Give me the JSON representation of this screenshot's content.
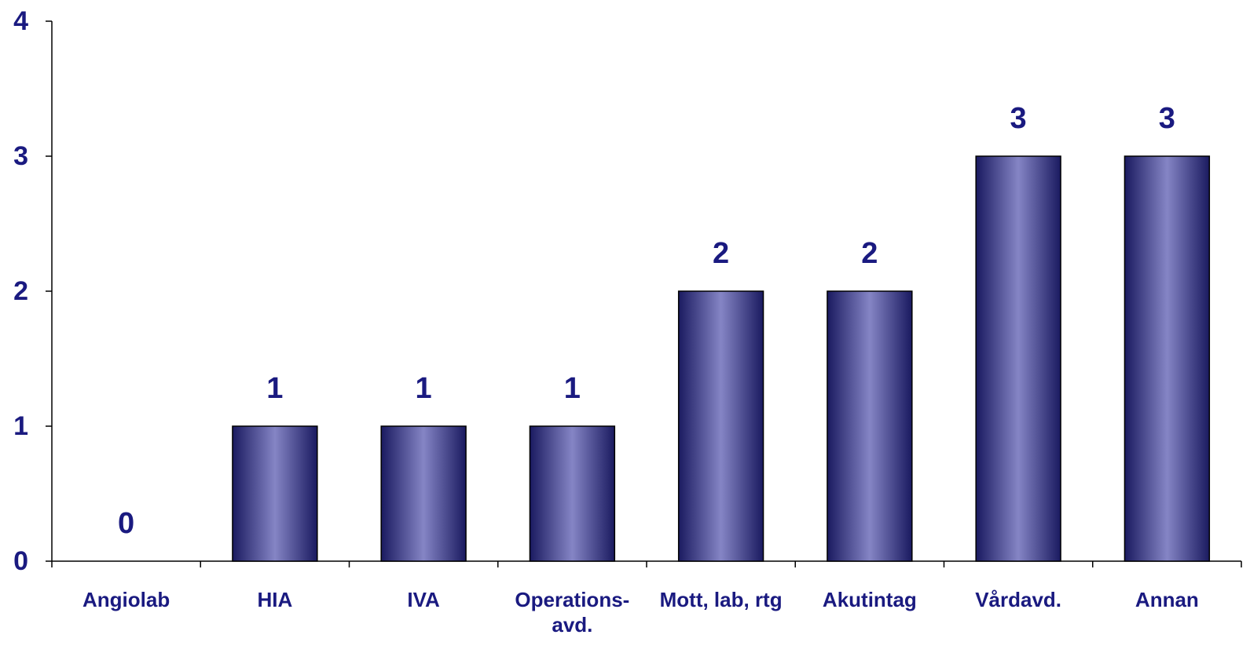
{
  "chart_data": {
    "type": "bar",
    "categories": [
      "Angiolab",
      "HIA",
      "IVA",
      "Operations-avd.",
      "Mott, lab, rtg",
      "Akutintag",
      "Vårdavd.",
      "Annan"
    ],
    "values": [
      0,
      1,
      1,
      1,
      2,
      2,
      3,
      3
    ],
    "color": "#8585c5",
    "ylim": [
      0,
      4
    ],
    "yticks": [
      0,
      1,
      2,
      3,
      4
    ],
    "grid": false
  }
}
